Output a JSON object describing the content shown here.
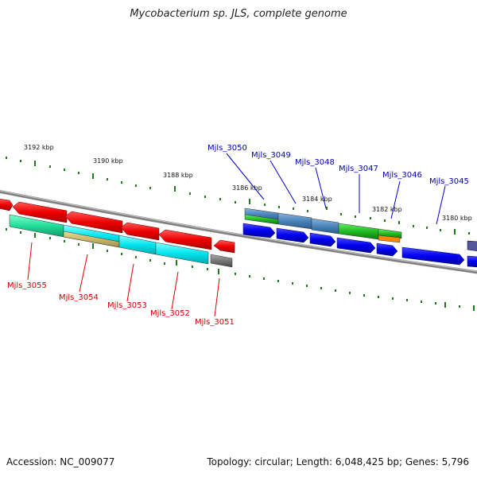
{
  "title": "Mycobacterium sp. JLS, complete genome",
  "footer": {
    "accession": "Accession: NC_009077",
    "summary": "Topology: circular; Length: 6,048,425 bp; Genes: 5,796"
  },
  "scale_labels": [
    "3192 kbp",
    "3190 kbp",
    "3188 kbp",
    "3186 kbp",
    "3184 kbp",
    "3182 kbp",
    "3180 kbp"
  ],
  "genes_minus_strand": [
    "Mjls_3055",
    "Mjls_3054",
    "Mjls_3053",
    "Mjls_3052",
    "Mjls_3051"
  ],
  "genes_plus_strand": [
    "Mjls_3050",
    "Mjls_3049",
    "Mjls_3048",
    "Mjls_3047",
    "Mjls_3046",
    "Mjls_3045"
  ],
  "colors": {
    "minus_strand_cds": "#ee0000",
    "plus_strand_cds": "#0000ee",
    "minus_label": "#cc0000",
    "plus_label": "#0000aa",
    "backbone": "#888888",
    "ticks": "#227722"
  }
}
